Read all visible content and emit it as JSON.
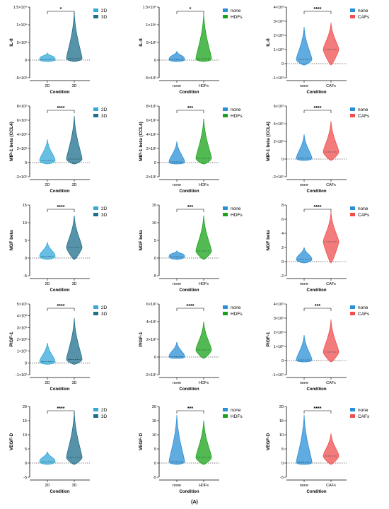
{
  "figure_label": "(A)",
  "colors": {
    "2D": "#35a9d9",
    "3D": "#1f6f8b",
    "none": "#2b8fd6",
    "HDFs": "#1aa31a",
    "CAFs": "#ef4f4f"
  },
  "chart_data": [
    {
      "type": "violin",
      "ylabel": "IL-8",
      "xlabel": "Condition",
      "categories": [
        "2D",
        "3D"
      ],
      "ylim": [
        -5000,
        15000
      ],
      "yticks": [
        "1.5×10⁴",
        "1×10⁴",
        "5×10³",
        "0",
        "-5×10³"
      ],
      "ytick_values": [
        15000,
        10000,
        5000,
        0,
        -5000
      ],
      "significance": "*",
      "legend": [
        "2D",
        "3D"
      ],
      "series": [
        {
          "name": "2D",
          "median": 200,
          "max": 2000
        },
        {
          "name": "3D",
          "median": 500,
          "max": 13500
        }
      ]
    },
    {
      "type": "violin",
      "ylabel": "IL-8",
      "xlabel": "Condition",
      "categories": [
        "none",
        "HDFs"
      ],
      "ylim": [
        -5000,
        15000
      ],
      "yticks": [
        "1.5×10⁴",
        "1×10⁴",
        "5×10³",
        "0",
        "-5×10³"
      ],
      "ytick_values": [
        15000,
        10000,
        5000,
        0,
        -5000
      ],
      "significance": "*",
      "legend": [
        "none",
        "HDFs"
      ],
      "series": [
        {
          "name": "none",
          "median": 200,
          "max": 2500
        },
        {
          "name": "HDFs",
          "median": 400,
          "max": 13000
        }
      ]
    },
    {
      "type": "violin",
      "ylabel": "IL-8",
      "xlabel": "Condition",
      "categories": [
        "none",
        "CAFs"
      ],
      "ylim": [
        -1000,
        4000
      ],
      "yticks": [
        "4×10³",
        "3×10³",
        "2×10³",
        "1×10³",
        "0",
        "-1×10³"
      ],
      "ytick_values": [
        4000,
        3000,
        2000,
        1000,
        0,
        -1000
      ],
      "significance": "****",
      "legend": [
        "none",
        "CAFs"
      ],
      "series": [
        {
          "name": "none",
          "median": 300,
          "max": 2600
        },
        {
          "name": "CAFs",
          "median": 1000,
          "max": 2900
        }
      ]
    },
    {
      "type": "violin",
      "ylabel": "MIP-1 beta (CCL4)",
      "xlabel": "Condition",
      "categories": [
        "2D",
        "3D"
      ],
      "ylim": [
        -200,
        800
      ],
      "yticks": [
        "8×10²",
        "6×10²",
        "4×10²",
        "2×10²",
        "0",
        "-2×10²"
      ],
      "ytick_values": [
        800,
        600,
        400,
        200,
        0,
        -200
      ],
      "significance": "****",
      "legend": [
        "2D",
        "3D"
      ],
      "series": [
        {
          "name": "2D",
          "median": 30,
          "max": 330
        },
        {
          "name": "3D",
          "median": 50,
          "max": 660
        }
      ]
    },
    {
      "type": "violin",
      "ylabel": "MIP-1 beta (CCL4)",
      "xlabel": "Condition",
      "categories": [
        "none",
        "HDFs"
      ],
      "ylim": [
        -200,
        800
      ],
      "yticks": [
        "8×10²",
        "6×10²",
        "4×10²",
        "2×10²",
        "0",
        "-2×10²"
      ],
      "ytick_values": [
        800,
        600,
        400,
        200,
        0,
        -200
      ],
      "significance": "***",
      "legend": [
        "none",
        "HDFs"
      ],
      "series": [
        {
          "name": "none",
          "median": 10,
          "max": 300
        },
        {
          "name": "HDFs",
          "median": 60,
          "max": 620
        }
      ]
    },
    {
      "type": "violin",
      "ylabel": "MIP-1 beta (CCL4)",
      "xlabel": "Condition",
      "categories": [
        "none",
        "CAFs"
      ],
      "ylim": [
        -200,
        600
      ],
      "yticks": [
        "6×10²",
        "4×10²",
        "2×10²",
        "0",
        "-2×10²"
      ],
      "ytick_values": [
        600,
        400,
        200,
        0,
        -200
      ],
      "significance": "****",
      "legend": [
        "none",
        "CAFs"
      ],
      "series": [
        {
          "name": "none",
          "median": 10,
          "max": 280
        },
        {
          "name": "CAFs",
          "median": 80,
          "max": 430
        }
      ]
    },
    {
      "type": "violin",
      "ylabel": "NGF beta",
      "xlabel": "Condition",
      "categories": [
        "2D",
        "3D"
      ],
      "ylim": [
        -5,
        15
      ],
      "yticks": [
        "15",
        "10",
        "5",
        "0",
        "-5"
      ],
      "ytick_values": [
        15,
        10,
        5,
        0,
        -5
      ],
      "significance": "****",
      "legend": [
        "2D",
        "3D"
      ],
      "series": [
        {
          "name": "2D",
          "median": 0.5,
          "max": 4.5
        },
        {
          "name": "3D",
          "median": 3,
          "max": 12
        }
      ]
    },
    {
      "type": "violin",
      "ylabel": "NGF beta",
      "xlabel": "Condition",
      "categories": [
        "none",
        "HDFs"
      ],
      "ylim": [
        -5,
        15
      ],
      "yticks": [
        "15",
        "10",
        "5",
        "0",
        "-5"
      ],
      "ytick_values": [
        15,
        10,
        5,
        0,
        -5
      ],
      "significance": "***",
      "legend": [
        "none",
        "HDFs"
      ],
      "series": [
        {
          "name": "none",
          "median": 0.4,
          "max": 2
        },
        {
          "name": "HDFs",
          "median": 2,
          "max": 12
        }
      ]
    },
    {
      "type": "violin",
      "ylabel": "NGF beta",
      "xlabel": "Condition",
      "categories": [
        "none",
        "CAFs"
      ],
      "ylim": [
        -2,
        8
      ],
      "yticks": [
        "8",
        "6",
        "4",
        "2",
        "0",
        "-2"
      ],
      "ytick_values": [
        8,
        6,
        4,
        2,
        0,
        -2
      ],
      "significance": "****",
      "legend": [
        "none",
        "CAFs"
      ],
      "series": [
        {
          "name": "none",
          "median": 0.3,
          "max": 2
        },
        {
          "name": "CAFs",
          "median": 2.8,
          "max": 7
        }
      ]
    },
    {
      "type": "violin",
      "ylabel": "PlGF-1",
      "xlabel": "Condition",
      "categories": [
        "2D",
        "3D"
      ],
      "ylim": [
        -100,
        500
      ],
      "yticks": [
        "5×10²",
        "4×10²",
        "3×10²",
        "2×10²",
        "1×10²",
        "0",
        "-1×10²"
      ],
      "ytick_values": [
        500,
        400,
        300,
        200,
        100,
        0,
        -100
      ],
      "significance": "****",
      "legend": [
        "2D",
        "3D"
      ],
      "series": [
        {
          "name": "2D",
          "median": 10,
          "max": 170
        },
        {
          "name": "3D",
          "median": 30,
          "max": 380
        }
      ]
    },
    {
      "type": "violin",
      "ylabel": "PlGF-1",
      "xlabel": "Condition",
      "categories": [
        "none",
        "HDFs"
      ],
      "ylim": [
        -200,
        600
      ],
      "yticks": [
        "6×10²",
        "4×10²",
        "2×10²",
        "0",
        "-2×10²"
      ],
      "ytick_values": [
        600,
        400,
        200,
        0,
        -200
      ],
      "significance": "****",
      "legend": [
        "none",
        "HDFs"
      ],
      "series": [
        {
          "name": "none",
          "median": 5,
          "max": 170
        },
        {
          "name": "HDFs",
          "median": 80,
          "max": 400
        }
      ]
    },
    {
      "type": "violin",
      "ylabel": "PlGF-1",
      "xlabel": "Condition",
      "categories": [
        "none",
        "CAFs"
      ],
      "ylim": [
        -100,
        400
      ],
      "yticks": [
        "4×10²",
        "3×10²",
        "2×10²",
        "1×10²",
        "0",
        "-1×10²"
      ],
      "ytick_values": [
        400,
        300,
        200,
        100,
        0,
        -100
      ],
      "significance": "***",
      "legend": [
        "none",
        "CAFs"
      ],
      "series": [
        {
          "name": "none",
          "median": 5,
          "max": 180
        },
        {
          "name": "CAFs",
          "median": 60,
          "max": 290
        }
      ]
    },
    {
      "type": "violin",
      "ylabel": "VEGF-D",
      "xlabel": "Condition",
      "categories": [
        "2D",
        "3D"
      ],
      "ylim": [
        -5,
        20
      ],
      "yticks": [
        "20",
        "15",
        "10",
        "5",
        "0",
        "-5"
      ],
      "ytick_values": [
        20,
        15,
        10,
        5,
        0,
        -5
      ],
      "significance": "****",
      "legend": [
        "2D",
        "3D"
      ],
      "series": [
        {
          "name": "2D",
          "median": 0.5,
          "max": 4
        },
        {
          "name": "3D",
          "median": 2,
          "max": 18
        }
      ]
    },
    {
      "type": "violin",
      "ylabel": "VEGF-D",
      "xlabel": "Condition",
      "categories": [
        "none",
        "HDFs"
      ],
      "ylim": [
        -5,
        20
      ],
      "yticks": [
        "20",
        "15",
        "10",
        "5",
        "0",
        "-5"
      ],
      "ytick_values": [
        20,
        15,
        10,
        5,
        0,
        -5
      ],
      "significance": "***",
      "legend": [
        "none",
        "HDFs"
      ],
      "series": [
        {
          "name": "none",
          "median": 0.5,
          "max": 17
        },
        {
          "name": "HDFs",
          "median": 2,
          "max": 15
        }
      ]
    },
    {
      "type": "violin",
      "ylabel": "VEGF-D",
      "xlabel": "Condition",
      "categories": [
        "none",
        "CAFs"
      ],
      "ylim": [
        -5,
        20
      ],
      "yticks": [
        "20",
        "15",
        "10",
        "5",
        "0",
        "-5"
      ],
      "ytick_values": [
        20,
        15,
        10,
        5,
        0,
        -5
      ],
      "significance": "****",
      "legend": [
        "none",
        "CAFs"
      ],
      "series": [
        {
          "name": "none",
          "median": 0.3,
          "max": 17
        },
        {
          "name": "CAFs",
          "median": 2.5,
          "max": 10.5
        }
      ]
    }
  ]
}
